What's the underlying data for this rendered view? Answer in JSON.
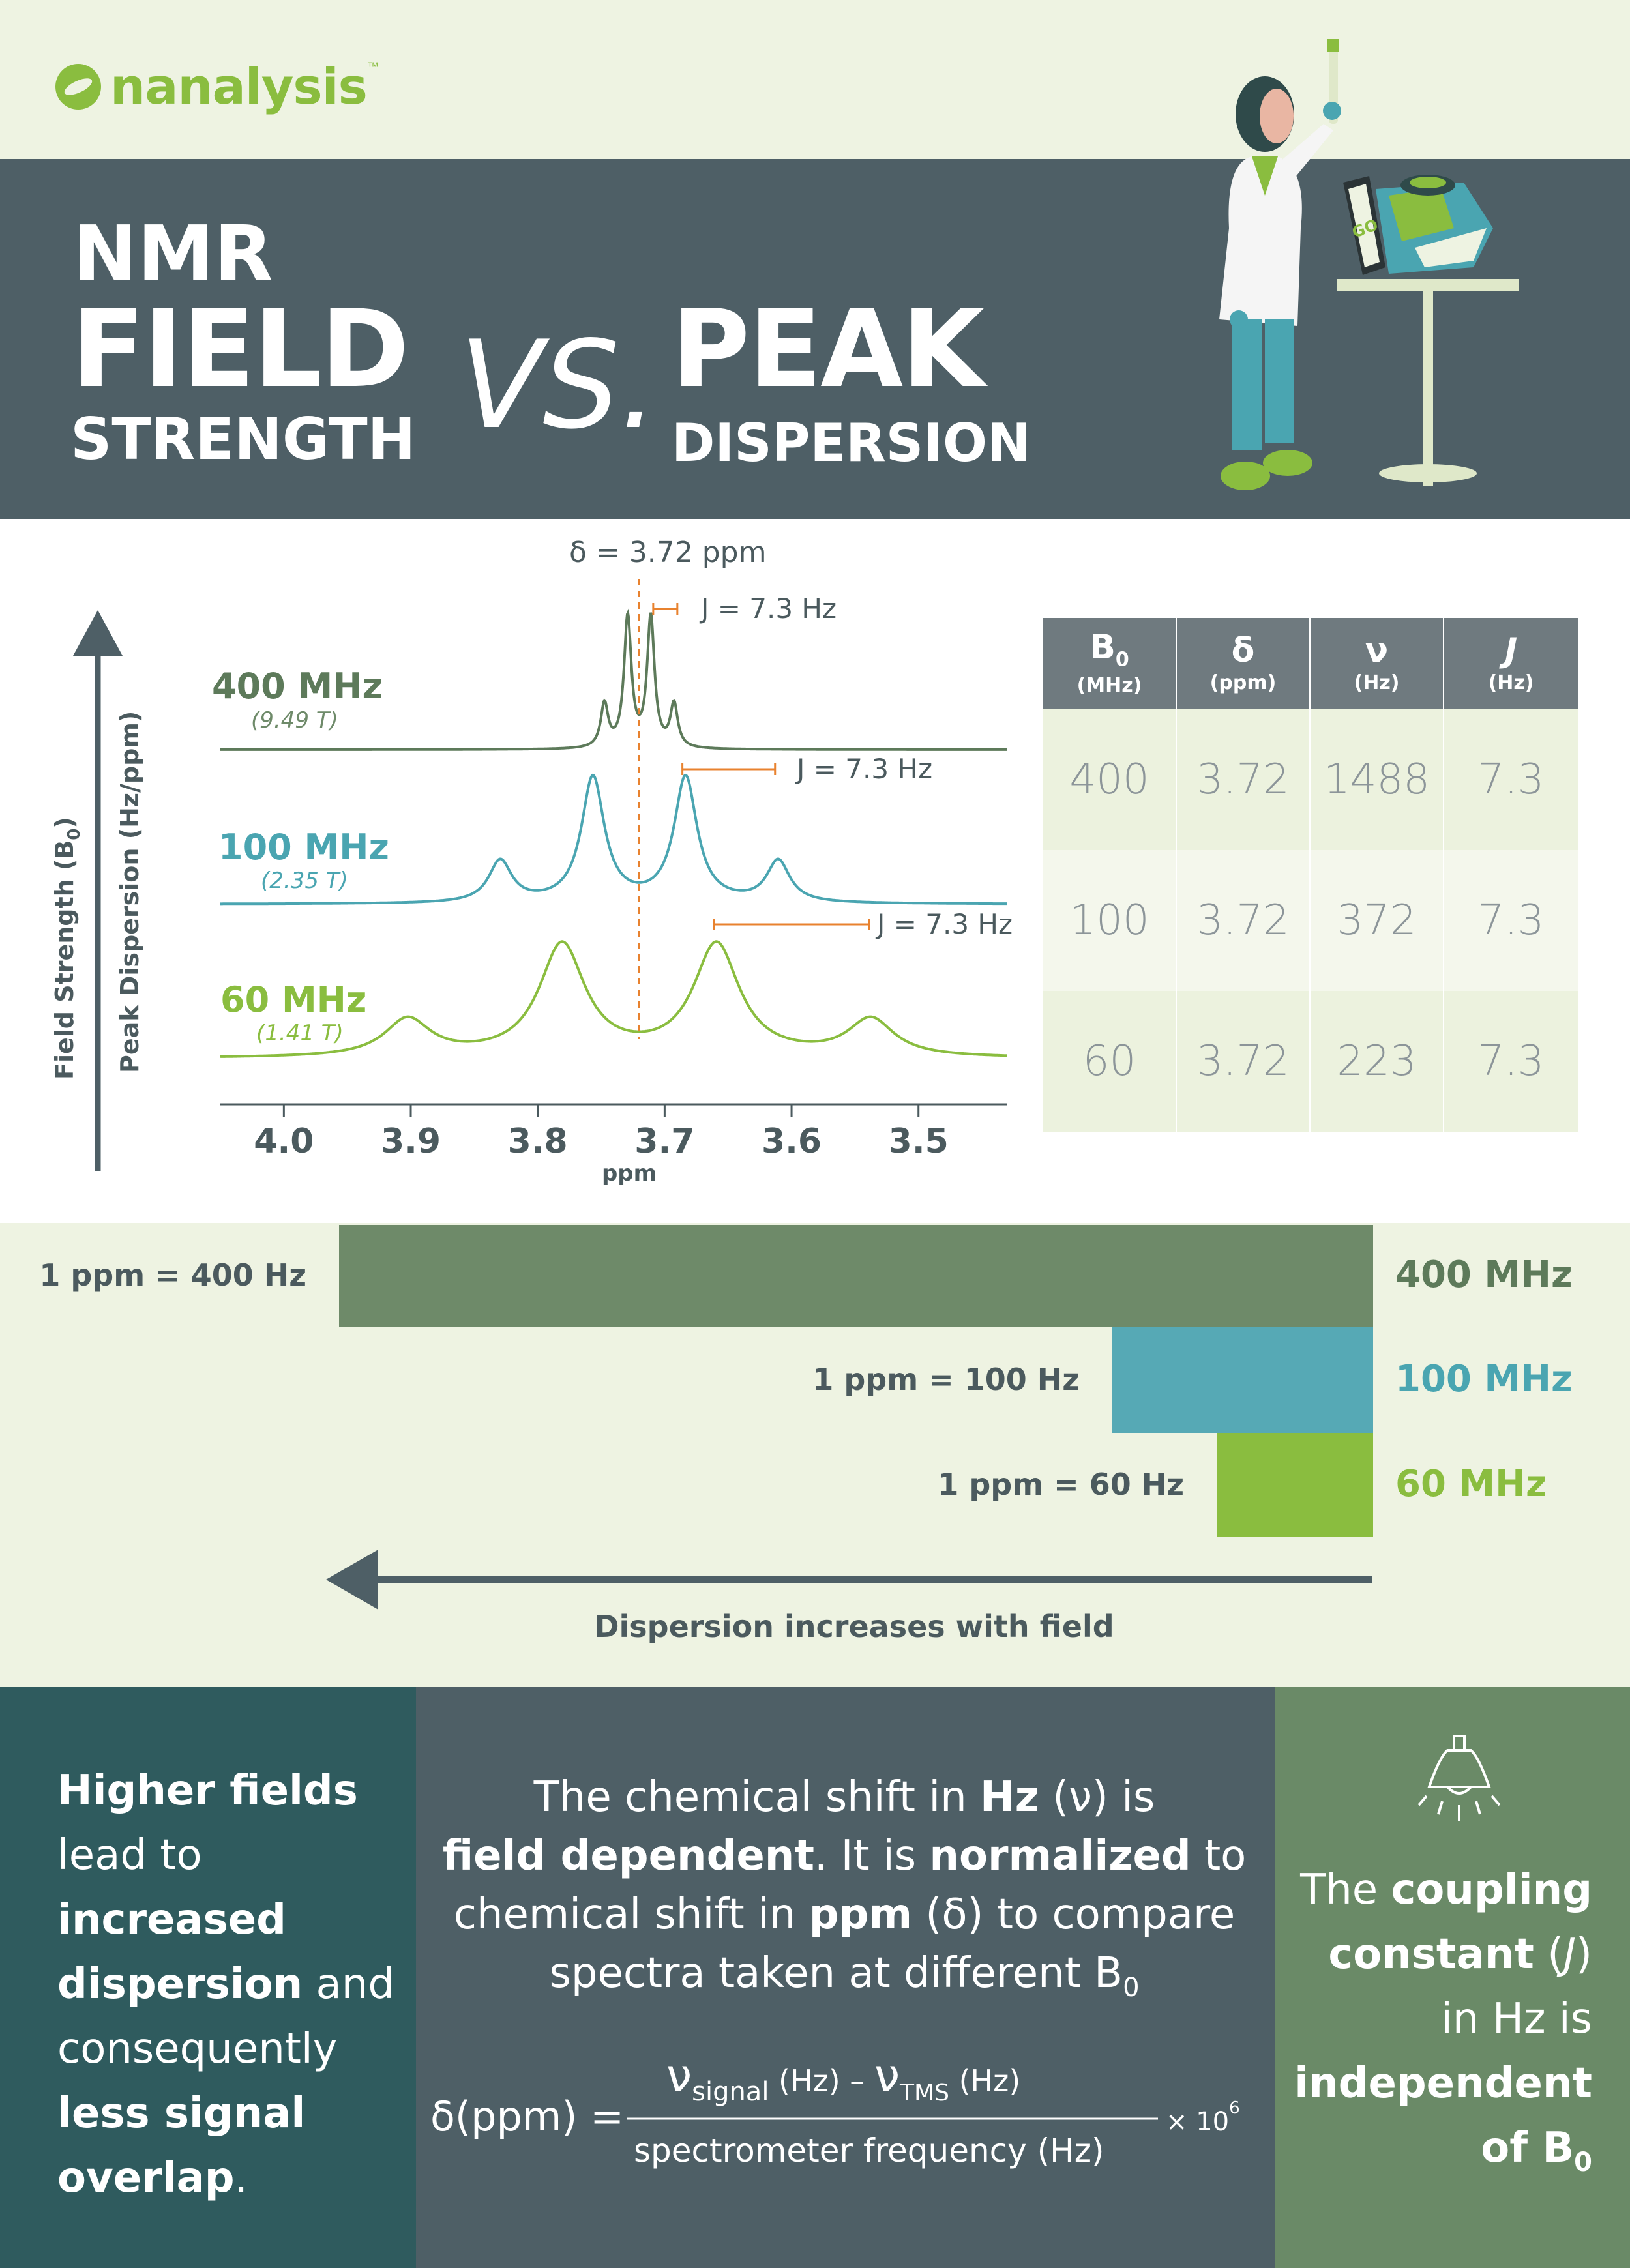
{
  "brand": {
    "name": "nanalysis",
    "tm": "™"
  },
  "title": {
    "line1": "NMR",
    "line2": "FIELD",
    "line3": "STRENGTH",
    "vs": "VS.",
    "line4": "PEAK",
    "line5": "DISPERSION"
  },
  "illustration": {
    "screen_label": "GO"
  },
  "spectra": {
    "delta_label": "δ = 3.72 ppm",
    "axis_field_label": "Field Strength (B",
    "axis_field_sub": "0",
    "axis_disp_label": "Peak Dispersion (Hz/ppm)",
    "xlabel": "ppm",
    "ticks": [
      "4.0",
      "3.9",
      "3.8",
      "3.7",
      "3.6",
      "3.5"
    ],
    "j_label": "J = 7.3 Hz",
    "traces": [
      {
        "mhz": "400 MHz",
        "tesla": "(9.49 T)",
        "color": "#5d7a5a"
      },
      {
        "mhz": "100 MHz",
        "tesla": "(2.35 T)",
        "color": "#4aa5b1"
      },
      {
        "mhz": "60 MHz",
        "tesla": "(1.41 T)",
        "color": "#8abd3f"
      }
    ],
    "accent_color": "#e8822f"
  },
  "chart_data": {
    "type": "line",
    "title": "",
    "xlabel": "ppm",
    "ylabel": "Peak Dispersion (Hz/ppm)",
    "xlim": [
      4.05,
      3.43
    ],
    "x_ticks": [
      4.0,
      3.9,
      3.8,
      3.7,
      3.6,
      3.5
    ],
    "chemical_shift_ppm": 3.72,
    "coupling_constant_hz": 7.3,
    "multiplet": "quartet",
    "relative_intensities": [
      1,
      3,
      3,
      1
    ],
    "series": [
      {
        "name": "400 MHz",
        "field_T": 9.49,
        "peaks_ppm": [
          3.7474,
          3.7291,
          3.7109,
          3.6926
        ],
        "width_ppm": 0.0035
      },
      {
        "name": "100 MHz",
        "field_T": 2.35,
        "peaks_ppm": [
          3.8295,
          3.7565,
          3.6835,
          3.6105
        ],
        "width_ppm": 0.011
      },
      {
        "name": "60 MHz",
        "field_T": 1.41,
        "peaks_ppm": [
          3.9025,
          3.7808,
          3.6592,
          3.5375
        ],
        "width_ppm": 0.022
      }
    ]
  },
  "table": {
    "headers": [
      {
        "sym": "B",
        "sub": "0",
        "unit": "(MHz)"
      },
      {
        "sym": "δ",
        "sub": "",
        "unit": "(ppm)"
      },
      {
        "sym": "ν",
        "sub": "",
        "unit": "(Hz)"
      },
      {
        "sym": "J",
        "sub": "",
        "unit": "(Hz)"
      }
    ],
    "rows": [
      [
        "400",
        "3.72",
        "1488",
        "7.3"
      ],
      [
        "100",
        "3.72",
        "372",
        "7.3"
      ],
      [
        "60",
        "3.72",
        "223",
        "7.3"
      ]
    ]
  },
  "dispersion": {
    "bars": [
      {
        "ppm_label": "1 ppm = 400 Hz",
        "mhz_label": "400 MHz",
        "hz_per_ppm": 400,
        "color": "#6e8a69",
        "text_color": "#5d7a5a"
      },
      {
        "ppm_label": "1 ppm = 100 Hz",
        "mhz_label": "100 MHz",
        "hz_per_ppm": 100,
        "color": "#56a9b5",
        "text_color": "#4aa5b1"
      },
      {
        "ppm_label": "1 ppm = 60 Hz",
        "mhz_label": "60 MHz",
        "hz_per_ppm": 60,
        "color": "#8abd3f",
        "text_color": "#8abd3f"
      }
    ],
    "caption": "Dispersion increases with field"
  },
  "panels": {
    "left": {
      "p1": "Higher fields",
      "p2": "lead to",
      "p3": "increased",
      "p4": "dispersion",
      "p5": "and",
      "p6": "consequently",
      "p7": "less signal",
      "p8": "overlap",
      "p9": "."
    },
    "middle": {
      "a": "The chemical shift in ",
      "b": "Hz",
      "c": " (ν) is",
      "d": "field dependent",
      "e": ". It is ",
      "f": "normalized",
      "g": " to",
      "h": "chemical shift in ",
      "i": "ppm",
      "j": " (δ) to compare",
      "k": "spectra taken at different B",
      "k_sub": "0"
    },
    "formula": {
      "lhs": "δ(ppm) =",
      "nu": "ν",
      "sig": "signal",
      "sig_unit": " (Hz) – ",
      "tms": "TMS",
      "tms_unit": " (Hz)",
      "denominator": "spectrometer frequency (Hz)",
      "times": "× 10",
      "exp": "6"
    },
    "right": {
      "a": "The ",
      "b": "coupling",
      "c": "constant",
      "d": " (",
      "e": "J",
      "f": ")",
      "g": "in Hz is",
      "h": "independent",
      "i": "of B",
      "i_sub": "0"
    }
  }
}
